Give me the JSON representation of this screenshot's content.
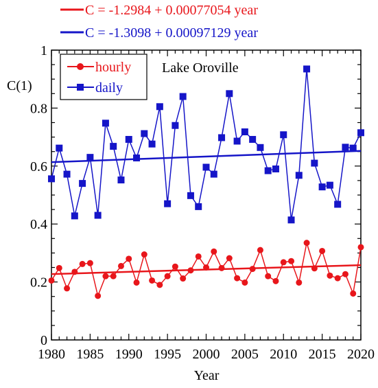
{
  "chart_data": {
    "type": "line",
    "title": "",
    "annotation": "Lake Oroville",
    "xlabel": "Year",
    "ylabel": "C(1)",
    "xlim": [
      1980,
      2020
    ],
    "ylim": [
      0,
      1
    ],
    "xticks": [
      1980,
      1985,
      1990,
      1995,
      2000,
      2005,
      2010,
      2015,
      2020
    ],
    "xtick_labels": [
      "1980",
      "1985",
      "1990",
      "1995",
      "2000",
      "2005",
      "2010",
      "2015",
      "2020"
    ],
    "yticks": [
      0,
      0.2,
      0.4,
      0.6,
      0.8,
      1
    ],
    "ytick_labels": [
      "0",
      "0.2",
      "0.4",
      "0.6",
      "0.8",
      "1"
    ],
    "grid": false,
    "legend_position": "top-left",
    "equations": [
      {
        "text": "C = -1.2984 + 0.00077054 year",
        "color": "#e8161b"
      },
      {
        "text": "C = -1.3098 + 0.00097129 year",
        "color": "#1515c8"
      }
    ],
    "series": [
      {
        "name": "hourly",
        "color": "#e8161b",
        "marker": "circle",
        "x": [
          1980,
          1981,
          1982,
          1983,
          1984,
          1985,
          1986,
          1987,
          1988,
          1989,
          1990,
          1991,
          1992,
          1993,
          1994,
          1995,
          1996,
          1997,
          1998,
          1999,
          2000,
          2001,
          2002,
          2003,
          2004,
          2005,
          2006,
          2007,
          2008,
          2009,
          2010,
          2011,
          2012,
          2013,
          2014,
          2015,
          2016,
          2017,
          2018,
          2019,
          2020
        ],
        "values": [
          0.205,
          0.248,
          0.178,
          0.235,
          0.262,
          0.265,
          0.152,
          0.22,
          0.22,
          0.255,
          0.28,
          0.198,
          0.295,
          0.205,
          0.19,
          0.22,
          0.253,
          0.212,
          0.24,
          0.288,
          0.25,
          0.305,
          0.248,
          0.282,
          0.213,
          0.198,
          0.245,
          0.31,
          0.22,
          0.203,
          0.268,
          0.272,
          0.198,
          0.335,
          0.247,
          0.307,
          0.222,
          0.213,
          0.227,
          0.16,
          0.32
        ],
        "fit": {
          "intercept": -1.2984,
          "slope": 0.00077054
        }
      },
      {
        "name": "daily",
        "color": "#1515c8",
        "marker": "square",
        "x": [
          1980,
          1981,
          1982,
          1983,
          1984,
          1985,
          1986,
          1987,
          1988,
          1989,
          1990,
          1991,
          1992,
          1993,
          1994,
          1995,
          1996,
          1997,
          1998,
          1999,
          2000,
          2001,
          2002,
          2003,
          2004,
          2005,
          2006,
          2007,
          2008,
          2009,
          2010,
          2011,
          2012,
          2013,
          2014,
          2015,
          2016,
          2017,
          2018,
          2019,
          2020
        ],
        "values": [
          0.556,
          0.662,
          0.572,
          0.428,
          0.54,
          0.63,
          0.43,
          0.748,
          0.668,
          0.552,
          0.692,
          0.628,
          0.712,
          0.676,
          0.805,
          0.47,
          0.74,
          0.84,
          0.498,
          0.46,
          0.596,
          0.572,
          0.698,
          0.85,
          0.686,
          0.718,
          0.692,
          0.664,
          0.584,
          0.59,
          0.708,
          0.414,
          0.568,
          0.935,
          0.61,
          0.528,
          0.534,
          0.468,
          0.665,
          0.662,
          0.715
        ],
        "fit": {
          "intercept": -1.3098,
          "slope": 0.00097129
        }
      }
    ]
  }
}
